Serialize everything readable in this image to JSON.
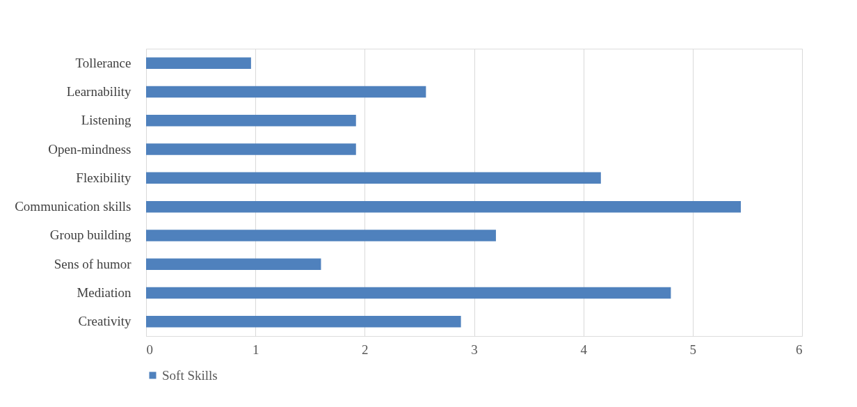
{
  "chart_data": {
    "type": "bar",
    "orientation": "horizontal",
    "categories": [
      "Tollerance",
      "Learnability",
      "Listening",
      "Open-mindness",
      "Flexibility",
      "Communication skills",
      "Group building",
      "Sens of humor",
      "Mediation",
      "Creativity"
    ],
    "series": [
      {
        "name": "Soft Skills",
        "color": "#4f81bd",
        "values": [
          0.96,
          2.56,
          1.92,
          1.92,
          4.16,
          5.44,
          3.2,
          1.6,
          4.8,
          2.88
        ]
      }
    ],
    "xlim": [
      0,
      6
    ],
    "xticks": [
      0,
      1,
      2,
      3,
      4,
      5,
      6
    ],
    "grid": "x",
    "legend": "bottom"
  }
}
